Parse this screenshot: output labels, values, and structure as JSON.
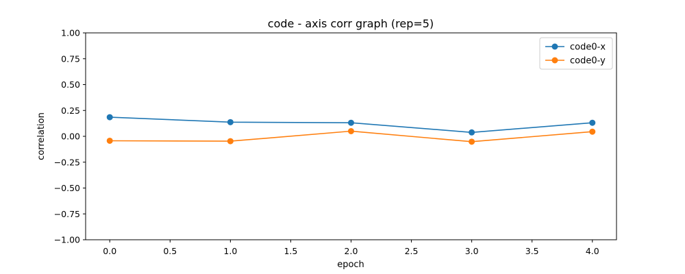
{
  "chart_data": {
    "type": "line",
    "title": "code - axis corr graph (rep=5)",
    "xlabel": "epoch",
    "ylabel": "correlation",
    "xlim": [
      -0.2,
      4.2
    ],
    "ylim": [
      -1.0,
      1.0
    ],
    "xticks": [
      "0.0",
      "0.5",
      "1.0",
      "1.5",
      "2.0",
      "2.5",
      "3.0",
      "3.5",
      "4.0"
    ],
    "yticks": [
      "−1.00",
      "−0.75",
      "−0.50",
      "−0.25",
      "0.00",
      "0.25",
      "0.50",
      "0.75",
      "1.00"
    ],
    "x": [
      0,
      1,
      2,
      3,
      4
    ],
    "series": [
      {
        "name": "code0-x",
        "color": "#1f77b4",
        "values": [
          0.185,
          0.137,
          0.131,
          0.038,
          0.131
        ]
      },
      {
        "name": "code0-y",
        "color": "#ff7f0e",
        "values": [
          -0.043,
          -0.047,
          0.05,
          -0.052,
          0.045
        ]
      }
    ],
    "grid": false,
    "legend": "top-right"
  }
}
